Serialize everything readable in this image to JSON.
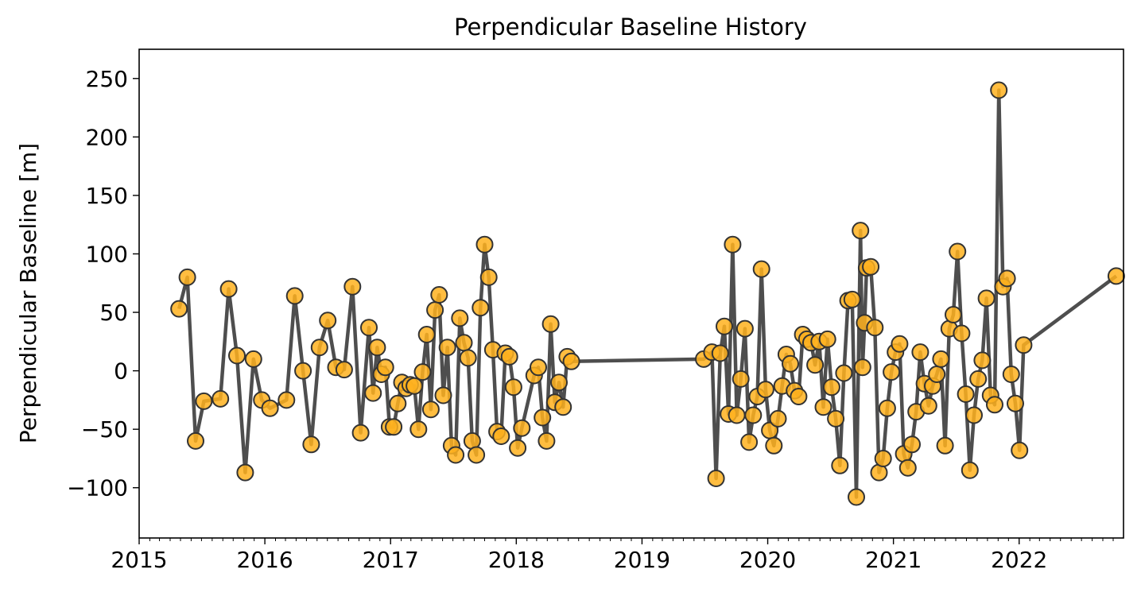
{
  "chart_data": {
    "type": "line",
    "title": "Perpendicular Baseline History",
    "xlabel": "",
    "ylabel": "Perpendicular Baseline [m]",
    "x_axis_type": "date",
    "xlim": [
      "2015-01-01",
      "2022-10-31"
    ],
    "ylim": [
      -143,
      275
    ],
    "x_ticks": [
      "2015-01-01",
      "2016-01-01",
      "2017-01-01",
      "2018-01-01",
      "2019-01-01",
      "2020-01-01",
      "2021-01-01",
      "2022-01-01"
    ],
    "x_tick_labels": [
      "2015",
      "2016",
      "2017",
      "2018",
      "2019",
      "2020",
      "2021",
      "2022"
    ],
    "x_minor_ticks": "monthly",
    "y_ticks": [
      -100,
      -50,
      0,
      50,
      100,
      150,
      200,
      250
    ],
    "y_tick_labels": [
      "−100",
      "−50",
      "0",
      "50",
      "100",
      "150",
      "200",
      "250"
    ],
    "grid": false,
    "legend": "none",
    "colors": {
      "line": "#444444",
      "marker_fill": "#ffb21e",
      "marker_edge": "#333333"
    },
    "series": [
      {
        "points": [
          [
            "2015-04-27",
            53
          ],
          [
            "2015-05-21",
            80
          ],
          [
            "2015-06-14",
            -60
          ],
          [
            "2015-07-08",
            -26
          ],
          [
            "2015-08-25",
            -24
          ],
          [
            "2015-09-18",
            70
          ],
          [
            "2015-10-12",
            13
          ],
          [
            "2015-11-05",
            -87
          ],
          [
            "2015-11-29",
            10
          ],
          [
            "2015-12-23",
            -25
          ],
          [
            "2016-01-16",
            -32
          ],
          [
            "2016-03-04",
            -25
          ],
          [
            "2016-03-28",
            64
          ],
          [
            "2016-04-21",
            0
          ],
          [
            "2016-05-15",
            -63
          ],
          [
            "2016-06-08",
            20
          ],
          [
            "2016-07-02",
            43
          ],
          [
            "2016-07-26",
            3
          ],
          [
            "2016-08-19",
            1
          ],
          [
            "2016-09-12",
            72
          ],
          [
            "2016-10-06",
            -53
          ],
          [
            "2016-10-30",
            37
          ],
          [
            "2016-11-11",
            -19
          ],
          [
            "2016-11-23",
            20
          ],
          [
            "2016-12-05",
            -3
          ],
          [
            "2016-12-17",
            3
          ],
          [
            "2016-12-29",
            -48
          ],
          [
            "2017-01-10",
            -48
          ],
          [
            "2017-01-22",
            -28
          ],
          [
            "2017-02-03",
            -10
          ],
          [
            "2017-02-15",
            -15
          ],
          [
            "2017-02-27",
            -12
          ],
          [
            "2017-03-11",
            -13
          ],
          [
            "2017-03-23",
            -50
          ],
          [
            "2017-04-04",
            -1
          ],
          [
            "2017-04-16",
            31
          ],
          [
            "2017-04-28",
            -33
          ],
          [
            "2017-05-10",
            52
          ],
          [
            "2017-05-22",
            65
          ],
          [
            "2017-06-03",
            -21
          ],
          [
            "2017-06-15",
            20
          ],
          [
            "2017-06-27",
            -64
          ],
          [
            "2017-07-09",
            -72
          ],
          [
            "2017-07-21",
            45
          ],
          [
            "2017-08-02",
            24
          ],
          [
            "2017-08-14",
            11
          ],
          [
            "2017-08-26",
            -60
          ],
          [
            "2017-09-07",
            -72
          ],
          [
            "2017-09-19",
            54
          ],
          [
            "2017-10-01",
            108
          ],
          [
            "2017-10-13",
            80
          ],
          [
            "2017-10-25",
            18
          ],
          [
            "2017-11-06",
            -52
          ],
          [
            "2017-11-18",
            -56
          ],
          [
            "2017-11-30",
            15
          ],
          [
            "2017-12-12",
            12
          ],
          [
            "2017-12-24",
            -14
          ],
          [
            "2018-01-05",
            -66
          ],
          [
            "2018-01-17",
            -49
          ],
          [
            "2018-02-22",
            -4
          ],
          [
            "2018-03-06",
            3
          ],
          [
            "2018-03-18",
            -40
          ],
          [
            "2018-03-30",
            -60
          ],
          [
            "2018-04-11",
            40
          ],
          [
            "2018-04-23",
            -27
          ],
          [
            "2018-05-05",
            -10
          ],
          [
            "2018-05-17",
            -31
          ],
          [
            "2018-05-29",
            12
          ],
          [
            "2018-06-10",
            8
          ],
          [
            "2019-06-29",
            10
          ],
          [
            "2019-07-23",
            16
          ],
          [
            "2019-08-04",
            -92
          ],
          [
            "2019-08-16",
            15
          ],
          [
            "2019-08-28",
            38
          ],
          [
            "2019-09-09",
            -37
          ],
          [
            "2019-09-21",
            108
          ],
          [
            "2019-10-03",
            -38
          ],
          [
            "2019-10-15",
            -7
          ],
          [
            "2019-10-27",
            36
          ],
          [
            "2019-11-08",
            -61
          ],
          [
            "2019-11-20",
            -38
          ],
          [
            "2019-12-02",
            -22
          ],
          [
            "2019-12-14",
            87
          ],
          [
            "2019-12-26",
            -16
          ],
          [
            "2020-01-07",
            -51
          ],
          [
            "2020-01-19",
            -64
          ],
          [
            "2020-01-31",
            -41
          ],
          [
            "2020-02-12",
            -13
          ],
          [
            "2020-02-24",
            14
          ],
          [
            "2020-03-07",
            6
          ],
          [
            "2020-03-19",
            -17
          ],
          [
            "2020-03-31",
            -22
          ],
          [
            "2020-04-12",
            31
          ],
          [
            "2020-04-24",
            27
          ],
          [
            "2020-05-06",
            24
          ],
          [
            "2020-05-18",
            5
          ],
          [
            "2020-05-30",
            25
          ],
          [
            "2020-06-11",
            -31
          ],
          [
            "2020-06-23",
            27
          ],
          [
            "2020-07-05",
            -14
          ],
          [
            "2020-07-17",
            -41
          ],
          [
            "2020-07-29",
            -81
          ],
          [
            "2020-08-10",
            -2
          ],
          [
            "2020-08-22",
            60
          ],
          [
            "2020-09-03",
            61
          ],
          [
            "2020-09-15",
            -108
          ],
          [
            "2020-09-27",
            120
          ],
          [
            "2020-10-03",
            3
          ],
          [
            "2020-10-09",
            41
          ],
          [
            "2020-10-15",
            88
          ],
          [
            "2020-10-27",
            89
          ],
          [
            "2020-11-08",
            37
          ],
          [
            "2020-11-20",
            -87
          ],
          [
            "2020-12-02",
            -75
          ],
          [
            "2020-12-14",
            -32
          ],
          [
            "2020-12-26",
            -1
          ],
          [
            "2021-01-07",
            16
          ],
          [
            "2021-01-19",
            23
          ],
          [
            "2021-01-31",
            -71
          ],
          [
            "2021-02-12",
            -83
          ],
          [
            "2021-02-24",
            -63
          ],
          [
            "2021-03-08",
            -35
          ],
          [
            "2021-03-20",
            16
          ],
          [
            "2021-04-01",
            -11
          ],
          [
            "2021-04-13",
            -30
          ],
          [
            "2021-04-25",
            -13
          ],
          [
            "2021-05-07",
            -3
          ],
          [
            "2021-05-19",
            10
          ],
          [
            "2021-05-31",
            -64
          ],
          [
            "2021-06-12",
            36
          ],
          [
            "2021-06-24",
            48
          ],
          [
            "2021-07-06",
            102
          ],
          [
            "2021-07-18",
            32
          ],
          [
            "2021-07-30",
            -20
          ],
          [
            "2021-08-11",
            -85
          ],
          [
            "2021-08-23",
            -38
          ],
          [
            "2021-09-04",
            -7
          ],
          [
            "2021-09-16",
            9
          ],
          [
            "2021-09-28",
            62
          ],
          [
            "2021-10-10",
            -21
          ],
          [
            "2021-10-22",
            -29
          ],
          [
            "2021-11-03",
            240
          ],
          [
            "2021-11-15",
            72
          ],
          [
            "2021-11-27",
            79
          ],
          [
            "2021-12-09",
            -3
          ],
          [
            "2021-12-21",
            -28
          ],
          [
            "2022-01-02",
            -68
          ],
          [
            "2022-01-14",
            22
          ],
          [
            "2022-10-10",
            81
          ]
        ]
      }
    ]
  }
}
